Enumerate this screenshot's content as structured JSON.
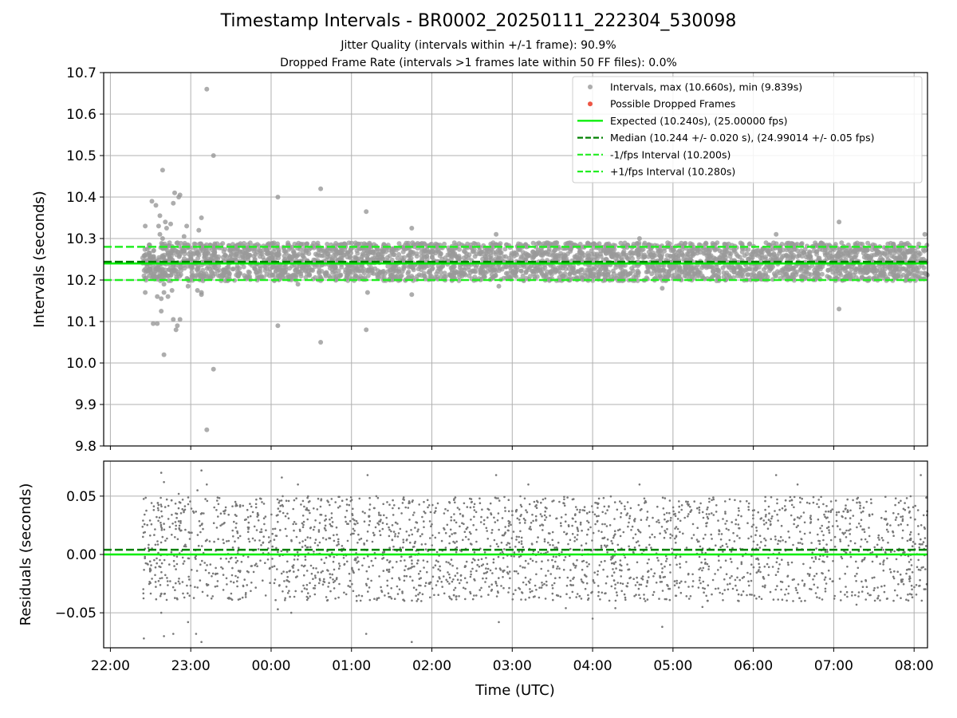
{
  "header": {
    "title": "Timestamp Intervals - BR0002_20250111_222304_530098",
    "subtitle_line1": "Jitter Quality (intervals within +/-1 frame): 90.9%",
    "subtitle_line2": "Dropped Frame Rate (intervals >1 frames late within 50 FF files): 0.0%"
  },
  "chart_data": [
    {
      "type": "scatter",
      "ylabel": "Intervals (seconds)",
      "x_axis": "time (UTC)",
      "xlim": [
        "21:55",
        "08:10"
      ],
      "ylim": [
        9.8,
        10.7
      ],
      "yticks": [
        "9.8",
        "9.9",
        "10.0",
        "10.1",
        "10.2",
        "10.3",
        "10.4",
        "10.5",
        "10.6",
        "10.7"
      ],
      "grid": true,
      "legend_position": "top-right",
      "legend": [
        "Intervals, max (10.660s), min (9.839s)",
        "Possible Dropped Frames",
        "Expected (10.240s), (25.00000 fps)",
        "Median (10.244 +/- 0.020 s), (24.99014 +/- 0.05 fps)",
        "-1/fps Interval (10.200s)",
        "+1/fps Interval (10.280s)"
      ],
      "reference_lines": {
        "expected": 10.24,
        "median": 10.244,
        "minus_1_fps": 10.2,
        "plus_1_fps": 10.28
      },
      "interval_stats": {
        "max": 10.66,
        "min": 9.839,
        "median": 10.244,
        "spread": 0.02
      },
      "series": [
        {
          "name": "Intervals",
          "color": "#999999",
          "x_range": [
            "22:24",
            "08:10"
          ],
          "note_values": "dense band between 10.20 and 10.29, outliers listed",
          "outliers": [
            {
              "x": "22:26",
              "y": 10.33
            },
            {
              "x": "22:26",
              "y": 10.17
            },
            {
              "x": "22:29",
              "y": 10.21
            },
            {
              "x": "22:31",
              "y": 10.39
            },
            {
              "x": "22:32",
              "y": 10.095
            },
            {
              "x": "22:34",
              "y": 10.38
            },
            {
              "x": "22:35",
              "y": 10.095
            },
            {
              "x": "22:35",
              "y": 10.16
            },
            {
              "x": "22:36",
              "y": 10.33
            },
            {
              "x": "22:37",
              "y": 10.31
            },
            {
              "x": "22:37",
              "y": 10.355
            },
            {
              "x": "22:38",
              "y": 10.125
            },
            {
              "x": "22:38",
              "y": 10.155
            },
            {
              "x": "22:39",
              "y": 10.3
            },
            {
              "x": "22:39",
              "y": 10.465
            },
            {
              "x": "22:40",
              "y": 10.02
            },
            {
              "x": "22:40",
              "y": 10.17
            },
            {
              "x": "22:40",
              "y": 10.19
            },
            {
              "x": "22:41",
              "y": 10.34
            },
            {
              "x": "22:42",
              "y": 10.325
            },
            {
              "x": "22:43",
              "y": 10.16
            },
            {
              "x": "22:44",
              "y": 10.25
            },
            {
              "x": "22:45",
              "y": 10.335
            },
            {
              "x": "22:46",
              "y": 10.175
            },
            {
              "x": "22:47",
              "y": 10.385
            },
            {
              "x": "22:47",
              "y": 10.105
            },
            {
              "x": "22:48",
              "y": 10.41
            },
            {
              "x": "22:49",
              "y": 10.08
            },
            {
              "x": "22:50",
              "y": 10.09
            },
            {
              "x": "22:51",
              "y": 10.4
            },
            {
              "x": "22:52",
              "y": 10.105
            },
            {
              "x": "22:52",
              "y": 10.405
            },
            {
              "x": "22:55",
              "y": 10.305
            },
            {
              "x": "22:57",
              "y": 10.33
            },
            {
              "x": "22:58",
              "y": 10.185
            },
            {
              "x": "23:05",
              "y": 10.175
            },
            {
              "x": "23:06",
              "y": 10.32
            },
            {
              "x": "23:08",
              "y": 10.35
            },
            {
              "x": "23:08",
              "y": 10.165
            },
            {
              "x": "23:08",
              "y": 10.17
            },
            {
              "x": "23:12",
              "y": 10.66
            },
            {
              "x": "23:12",
              "y": 9.839
            },
            {
              "x": "23:17",
              "y": 10.5
            },
            {
              "x": "23:17",
              "y": 9.985
            },
            {
              "x": "00:05",
              "y": 10.4
            },
            {
              "x": "00:05",
              "y": 10.09
            },
            {
              "x": "00:20",
              "y": 10.19
            },
            {
              "x": "00:37",
              "y": 10.42
            },
            {
              "x": "00:37",
              "y": 10.05
            },
            {
              "x": "01:11",
              "y": 10.365
            },
            {
              "x": "01:11",
              "y": 10.08
            },
            {
              "x": "01:12",
              "y": 10.17
            },
            {
              "x": "01:45",
              "y": 10.325
            },
            {
              "x": "01:45",
              "y": 10.165
            },
            {
              "x": "02:48",
              "y": 10.31
            },
            {
              "x": "02:50",
              "y": 10.185
            },
            {
              "x": "04:35",
              "y": 10.3
            },
            {
              "x": "04:52",
              "y": 10.18
            },
            {
              "x": "06:17",
              "y": 10.31
            },
            {
              "x": "07:04",
              "y": 10.34
            },
            {
              "x": "07:04",
              "y": 10.13
            },
            {
              "x": "08:08",
              "y": 10.31
            }
          ]
        },
        {
          "name": "Possible Dropped Frames",
          "color": "#ee5544",
          "values": []
        },
        {
          "name": "Expected",
          "color": "#00ee00",
          "y": 10.24
        },
        {
          "name": "Median",
          "color": "#008000",
          "y": 10.244
        },
        {
          "name": "-1/fps Interval",
          "color": "#22ee22",
          "y": 10.2
        },
        {
          "name": "+1/fps Interval",
          "color": "#22ee22",
          "y": 10.28
        }
      ]
    },
    {
      "type": "scatter",
      "ylabel": "Residuals (seconds)",
      "xlabel": "Time (UTC)",
      "xlim": [
        "21:55",
        "08:10"
      ],
      "ylim": [
        -0.08,
        0.08
      ],
      "yticks": [
        "−0.05",
        "0.00",
        "0.05"
      ],
      "xticks": [
        "22:00",
        "23:00",
        "00:00",
        "01:00",
        "02:00",
        "03:00",
        "04:00",
        "05:00",
        "06:00",
        "07:00",
        "08:00"
      ],
      "grid": true,
      "reference_lines": {
        "zero": 0.0,
        "median_offset": 0.004
      },
      "series": [
        {
          "name": "Residuals",
          "color": "#777777",
          "x_range": [
            "22:24",
            "08:10"
          ],
          "note_values": "dense band between -0.04 and 0.05, outliers listed",
          "outliers": [
            {
              "x": "22:25",
              "y": -0.072
            },
            {
              "x": "22:38",
              "y": 0.07
            },
            {
              "x": "22:38",
              "y": -0.05
            },
            {
              "x": "22:40",
              "y": -0.07
            },
            {
              "x": "22:40",
              "y": 0.062
            },
            {
              "x": "22:47",
              "y": -0.068
            },
            {
              "x": "22:51",
              "y": 0.052
            },
            {
              "x": "22:58",
              "y": -0.058
            },
            {
              "x": "23:04",
              "y": -0.068
            },
            {
              "x": "23:05",
              "y": 0.055
            },
            {
              "x": "23:08",
              "y": -0.075
            },
            {
              "x": "23:08",
              "y": 0.072
            },
            {
              "x": "23:12",
              "y": 0.06
            },
            {
              "x": "00:05",
              "y": -0.047
            },
            {
              "x": "00:08",
              "y": 0.066
            },
            {
              "x": "00:15",
              "y": -0.05
            },
            {
              "x": "00:20",
              "y": 0.06
            },
            {
              "x": "01:11",
              "y": -0.068
            },
            {
              "x": "01:12",
              "y": 0.068
            },
            {
              "x": "01:45",
              "y": -0.075
            },
            {
              "x": "02:48",
              "y": 0.068
            },
            {
              "x": "02:50",
              "y": -0.058
            },
            {
              "x": "03:12",
              "y": 0.06
            },
            {
              "x": "03:40",
              "y": -0.046
            },
            {
              "x": "04:00",
              "y": -0.055
            },
            {
              "x": "04:17",
              "y": -0.046
            },
            {
              "x": "04:35",
              "y": 0.06
            },
            {
              "x": "04:52",
              "y": -0.062
            },
            {
              "x": "05:22",
              "y": -0.045
            },
            {
              "x": "06:17",
              "y": 0.068
            },
            {
              "x": "06:33",
              "y": 0.06
            },
            {
              "x": "07:17",
              "y": -0.043
            },
            {
              "x": "08:05",
              "y": 0.068
            }
          ]
        }
      ]
    }
  ]
}
